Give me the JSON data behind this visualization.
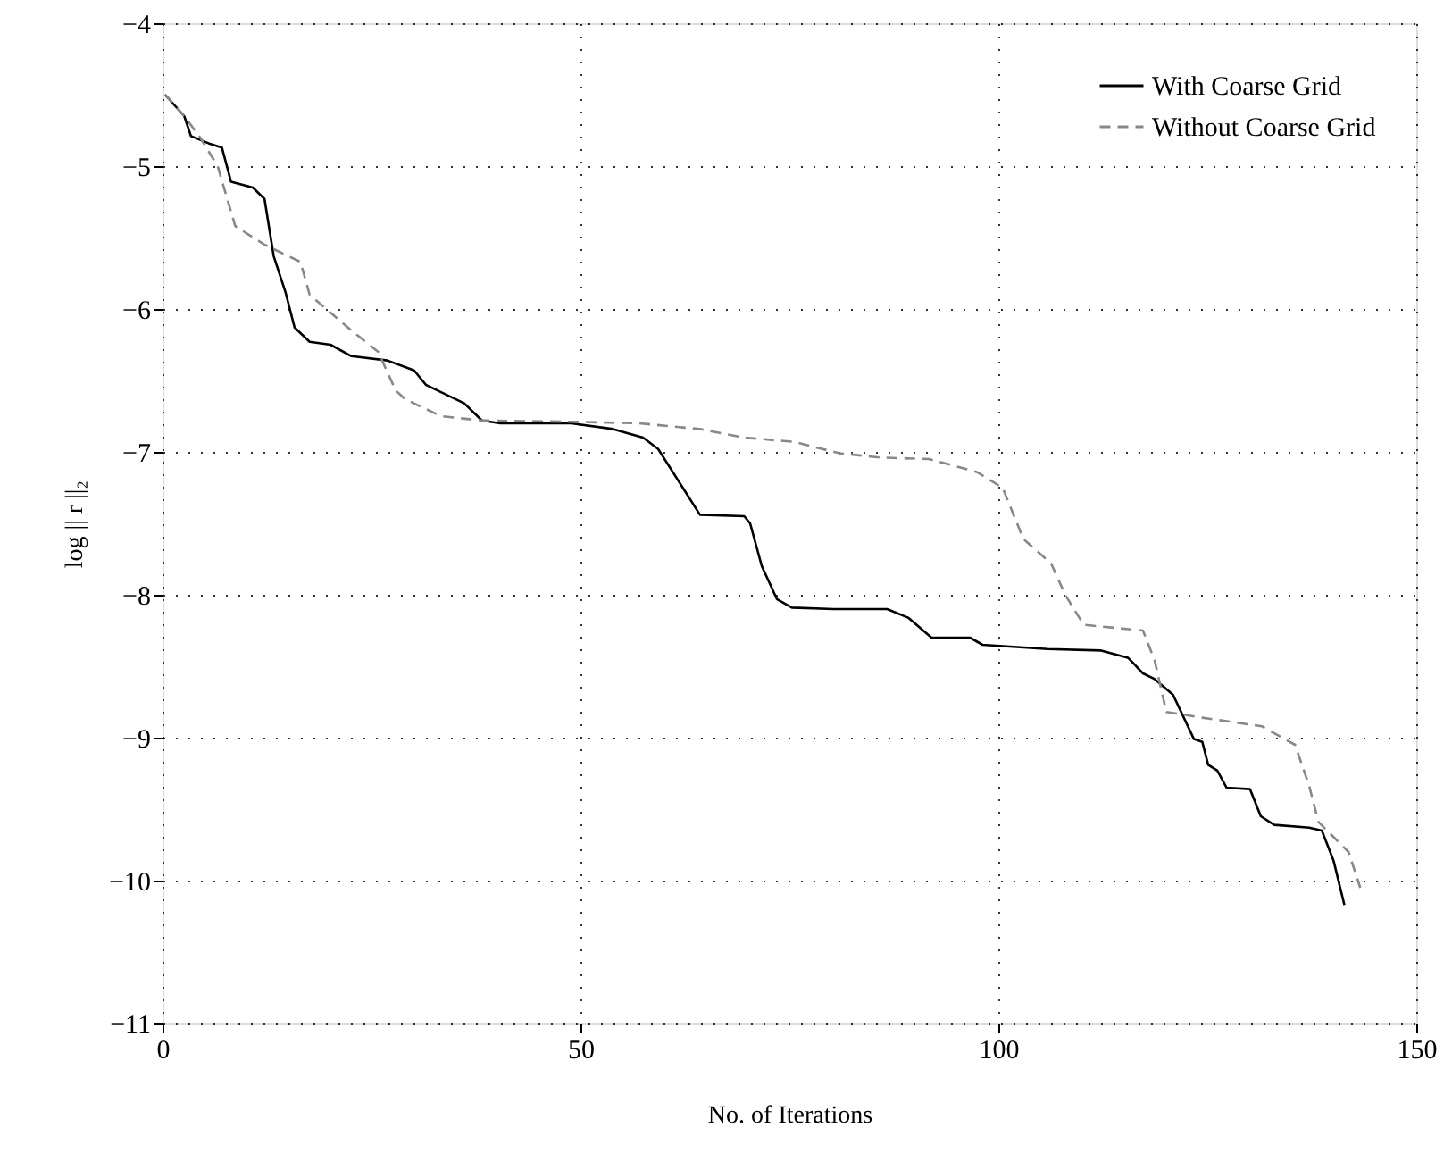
{
  "chart_data": {
    "type": "line",
    "xlabel": "No. of Iterations",
    "ylabel": "log || r ||₂",
    "xlim": [
      0,
      150
    ],
    "ylim": [
      -11,
      -4
    ],
    "xticks": [
      0,
      50,
      100,
      150
    ],
    "yticks": [
      -11,
      -10,
      -9,
      -8,
      -7,
      -6,
      -5,
      -4
    ],
    "grid": true,
    "legend": "top right",
    "marker": "none",
    "series": [
      {
        "name": "With Coarse Grid",
        "color": "#000000",
        "line_style": "solid",
        "x": [
          0.3,
          2.6,
          3.4,
          5.5,
          7.1,
          8.2,
          10.8,
          12.2,
          13.3,
          14.7,
          15.8,
          17.6,
          20.1,
          22.6,
          26.9,
          30.1,
          31.5,
          36.1,
          38.2,
          40.4,
          48.9,
          53.9,
          57.5,
          59.3,
          64.3,
          69.6,
          70.3,
          71.7,
          73.5,
          75.3,
          80.3,
          86.7,
          89.2,
          92.0,
          96.6,
          98.1,
          105.9,
          112.3,
          115.5,
          117.3,
          118.7,
          120.9,
          123.4,
          124.4,
          125.1,
          126.2,
          127.3,
          130.1,
          131.4,
          133.0,
          137.2,
          138.7,
          140.1,
          141.4
        ],
        "values": [
          -4.5,
          -4.65,
          -4.79,
          -4.84,
          -4.87,
          -5.11,
          -5.15,
          -5.23,
          -5.63,
          -5.88,
          -6.13,
          -6.23,
          -6.25,
          -6.33,
          -6.36,
          -6.43,
          -6.53,
          -6.66,
          -6.78,
          -6.8,
          -6.8,
          -6.84,
          -6.9,
          -6.98,
          -7.44,
          -7.45,
          -7.5,
          -7.8,
          -8.03,
          -8.09,
          -8.1,
          -8.1,
          -8.16,
          -8.3,
          -8.3,
          -8.35,
          -8.38,
          -8.39,
          -8.44,
          -8.55,
          -8.59,
          -8.7,
          -9.01,
          -9.03,
          -9.19,
          -9.23,
          -9.35,
          -9.36,
          -9.55,
          -9.61,
          -9.63,
          -9.65,
          -9.86,
          -10.17
        ]
      },
      {
        "name": "Without Coarse Grid",
        "color": "#888888",
        "line_style": "dashed",
        "x": [
          0.3,
          2.6,
          4.5,
          6.6,
          8.7,
          12.2,
          16.5,
          17.6,
          22.6,
          25.8,
          27.9,
          29.0,
          33.3,
          38.2,
          50.0,
          57.0,
          64.3,
          69.6,
          75.6,
          81.0,
          86.0,
          91.7,
          97.4,
          100.5,
          103.0,
          106.3,
          108.0,
          110.2,
          117.3,
          118.7,
          120.1,
          124.4,
          131.5,
          135.5,
          137.2,
          138.3,
          141.9,
          143.3
        ],
        "values": [
          -4.5,
          -4.65,
          -4.8,
          -5.0,
          -5.42,
          -5.55,
          -5.67,
          -5.9,
          -6.15,
          -6.3,
          -6.57,
          -6.63,
          -6.75,
          -6.78,
          -6.79,
          -6.8,
          -6.84,
          -6.9,
          -6.93,
          -7.01,
          -7.04,
          -7.05,
          -7.14,
          -7.25,
          -7.61,
          -7.78,
          -8.0,
          -8.21,
          -8.25,
          -8.46,
          -8.82,
          -8.86,
          -8.92,
          -9.05,
          -9.34,
          -9.59,
          -9.8,
          -10.05
        ]
      }
    ]
  }
}
